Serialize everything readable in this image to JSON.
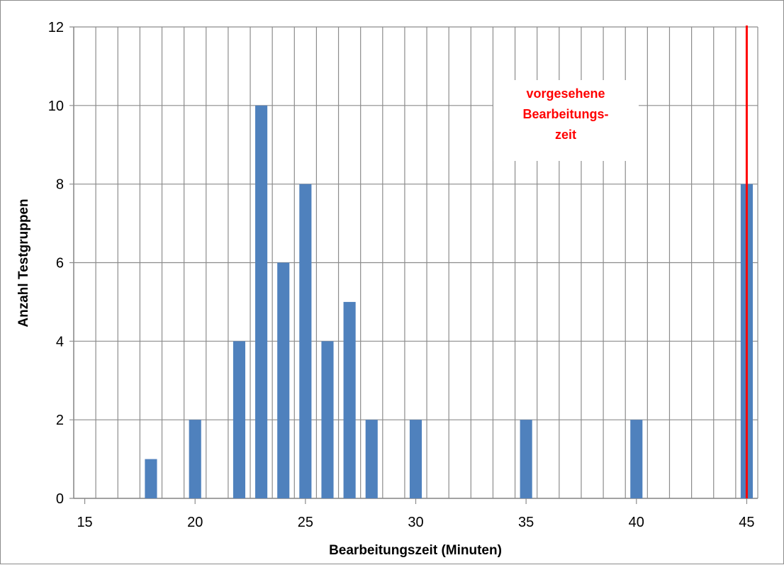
{
  "chart_data": {
    "type": "bar",
    "title": "",
    "xlabel": "Bearbeitungszeit (Minuten)",
    "ylabel": "Anzahl Testgruppen",
    "xlim": [
      15,
      45
    ],
    "ylim": [
      0,
      12
    ],
    "x_ticks": [
      15,
      20,
      25,
      30,
      35,
      40,
      45
    ],
    "y_ticks": [
      0,
      2,
      4,
      6,
      8,
      10,
      12
    ],
    "grid": true,
    "bar_color": "#4f81bd",
    "x": [
      18,
      20,
      22,
      23,
      24,
      25,
      26,
      27,
      28,
      30,
      35,
      40,
      45
    ],
    "values": [
      1,
      2,
      4,
      10,
      6,
      8,
      4,
      5,
      2,
      2,
      2,
      2,
      8
    ],
    "reference_line": {
      "x": 45,
      "color": "#ff0000",
      "label_lines": [
        "vorgesehene",
        "Bearbeitungs-",
        "zeit"
      ]
    }
  }
}
